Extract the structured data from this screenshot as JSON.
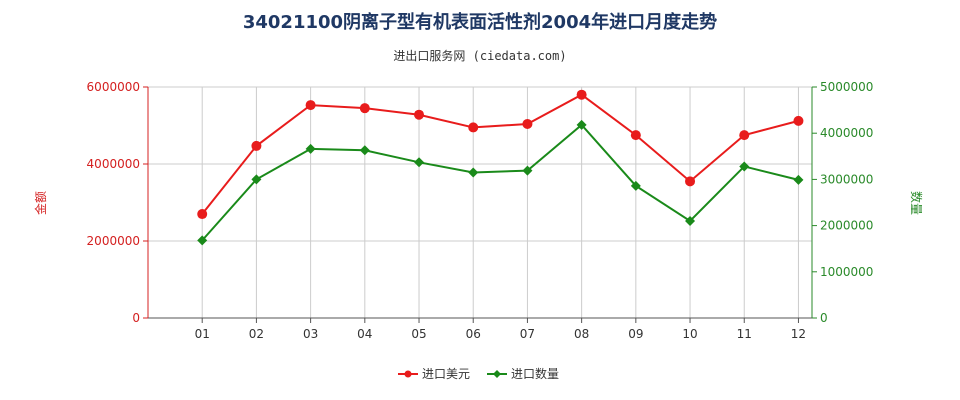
{
  "chart_data": {
    "type": "line",
    "title": "34021100阴离子型有机表面活性剂2004年进口月度走势",
    "subtitle": "进出口服务网 (ciedata.com)",
    "categories": [
      "01",
      "02",
      "03",
      "04",
      "05",
      "06",
      "07",
      "08",
      "09",
      "10",
      "11",
      "12"
    ],
    "y_left": {
      "label": "金额",
      "range": [
        0,
        6000000
      ],
      "ticks": [
        0,
        2000000,
        4000000,
        6000000
      ],
      "tick_labels": [
        "0",
        "2000000",
        "4000000",
        "6000000"
      ],
      "color": "#d42020"
    },
    "y_right": {
      "label": "数量",
      "range": [
        0,
        5000000
      ],
      "ticks": [
        0,
        1000000,
        2000000,
        3000000,
        4000000,
        5000000
      ],
      "tick_labels": [
        "0",
        "1000000",
        "2000000",
        "3000000",
        "4000000",
        "5000000"
      ],
      "color": "#2a8a2a"
    },
    "grid": true,
    "legend_position": "bottom-center",
    "series": [
      {
        "name": "进口美元",
        "axis": "left",
        "color": "#e81c1c",
        "marker": "circle",
        "values": [
          2700000,
          4470000,
          5530000,
          5450000,
          5280000,
          4950000,
          5040000,
          5800000,
          4750000,
          3550000,
          4750000,
          5120000
        ]
      },
      {
        "name": "进口数量",
        "axis": "right",
        "color": "#1a8a1a",
        "marker": "diamond",
        "values": [
          1680000,
          3000000,
          3660000,
          3630000,
          3370000,
          3150000,
          3190000,
          4180000,
          2860000,
          2100000,
          3280000,
          2990000
        ]
      }
    ]
  }
}
